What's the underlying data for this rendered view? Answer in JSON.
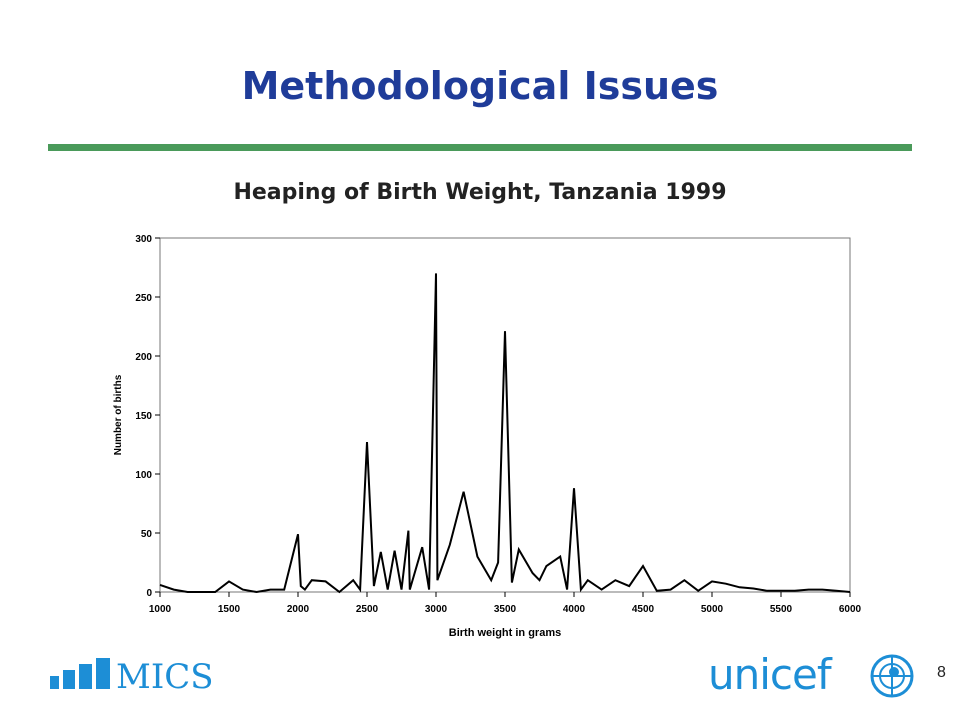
{
  "slide": {
    "title": "Methodological Issues",
    "chart_title": "Heaping of Birth Weight, Tanzania 1999",
    "slide_number": "8",
    "logos": {
      "left": "MICS",
      "right": "unicef"
    },
    "colors": {
      "title": "#1f3c99",
      "rule": "#4a9a5a",
      "brand": "#1d8ed6"
    }
  },
  "chart_data": {
    "type": "line",
    "title": "Heaping of Birth Weight, Tanzania 1999",
    "xlabel": "Birth weight in grams",
    "ylabel": "Number of births",
    "xlim": [
      1000,
      6000
    ],
    "ylim": [
      0,
      300
    ],
    "xticks": [
      1000,
      1500,
      2000,
      2500,
      3000,
      3500,
      4000,
      4500,
      5000,
      5500,
      6000
    ],
    "yticks": [
      0,
      50,
      100,
      150,
      200,
      250,
      300
    ],
    "grid": false,
    "series": [
      {
        "x": [
          1000,
          1100,
          1200,
          1400,
          1500,
          1600,
          1700,
          1800,
          1900,
          2000,
          2020,
          2050,
          2100,
          2200,
          2300,
          2400,
          2450,
          2500,
          2550,
          2600,
          2650,
          2700,
          2750,
          2800,
          2810,
          2900,
          2950,
          3000,
          3010,
          3100,
          3200,
          3300,
          3400,
          3450,
          3500,
          3550,
          3600,
          3700,
          3750,
          3800,
          3900,
          3950,
          4000,
          4050,
          4100,
          4200,
          4300,
          4400,
          4500,
          4600,
          4700,
          4800,
          4900,
          5000,
          5100,
          5200,
          5300,
          5400,
          5500,
          5600,
          5700,
          5800,
          5900,
          6000
        ],
        "y": [
          6,
          2,
          0,
          0,
          9,
          2,
          0,
          2,
          2,
          49,
          5,
          2,
          10,
          9,
          0,
          10,
          2,
          127,
          5,
          34,
          2,
          35,
          2,
          52,
          2,
          38,
          2,
          270,
          10,
          40,
          85,
          30,
          10,
          25,
          221,
          8,
          36,
          16,
          10,
          22,
          30,
          2,
          88,
          2,
          10,
          2,
          10,
          5,
          22,
          1,
          2,
          10,
          1,
          9,
          7,
          4,
          3,
          1,
          1,
          1,
          2,
          2,
          1,
          0
        ]
      }
    ]
  }
}
